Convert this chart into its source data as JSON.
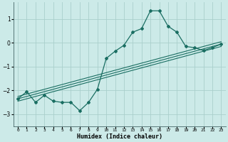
{
  "xlabel": "Humidex (Indice chaleur)",
  "bg_color": "#cceae8",
  "grid_color": "#aacfcc",
  "line_color": "#1a6e62",
  "xlim": [
    -0.5,
    23.5
  ],
  "ylim": [
    -3.5,
    1.7
  ],
  "xticks": [
    0,
    1,
    2,
    3,
    4,
    5,
    6,
    7,
    8,
    9,
    10,
    11,
    12,
    13,
    14,
    15,
    16,
    17,
    18,
    19,
    20,
    21,
    22,
    23
  ],
  "yticks": [
    -3,
    -2,
    -1,
    0,
    1
  ],
  "curve1_x": [
    0,
    1,
    2,
    3,
    4,
    5,
    6,
    7,
    8,
    9,
    10,
    11,
    12,
    13,
    14,
    15,
    16,
    17,
    18,
    19,
    20,
    21,
    22,
    23
  ],
  "curve1_y": [
    -2.35,
    -2.05,
    -2.5,
    -2.2,
    -2.45,
    -2.5,
    -2.5,
    -2.85,
    -2.5,
    -1.95,
    -0.65,
    -0.35,
    -0.1,
    0.45,
    0.6,
    1.35,
    1.35,
    0.7,
    0.45,
    -0.15,
    -0.2,
    -0.32,
    -0.2,
    -0.05
  ],
  "line1_x": [
    0,
    23
  ],
  "line1_y": [
    -2.45,
    -0.15
  ],
  "line2_x": [
    0,
    23
  ],
  "line2_y": [
    -2.35,
    -0.05
  ],
  "line3_x": [
    0,
    23
  ],
  "line3_y": [
    -2.25,
    0.05
  ]
}
